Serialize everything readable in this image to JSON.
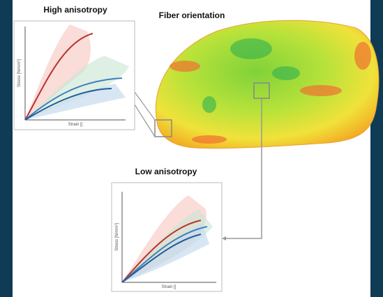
{
  "title": "Fiber orientation",
  "panels": [
    {
      "title": "High anisotropy",
      "y_label": "Stress [N/mm²]",
      "x_label": "Strain []"
    },
    {
      "title": "Low anisotropy",
      "y_label": "Stress [N/mm²]",
      "x_label": "Strain []"
    }
  ]
}
